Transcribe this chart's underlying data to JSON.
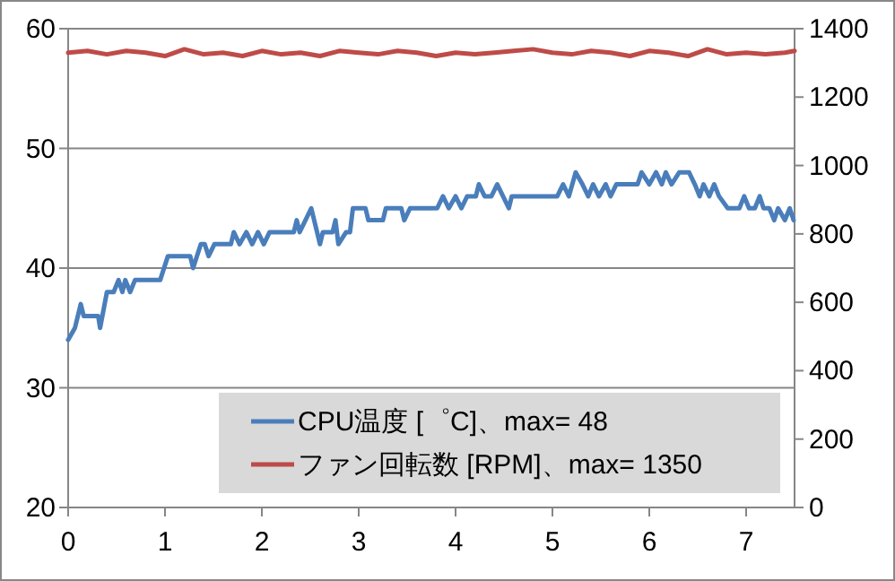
{
  "chart_data": {
    "type": "line",
    "xlim": [
      0,
      7.5
    ],
    "xticks": [
      0,
      1,
      2,
      3,
      4,
      5,
      6,
      7
    ],
    "ylim": [
      20,
      60
    ],
    "yticks": [
      20,
      30,
      40,
      50,
      60
    ],
    "y2lim": [
      0,
      1400
    ],
    "y2ticks": [
      0,
      200,
      400,
      600,
      800,
      1000,
      1200,
      1400
    ],
    "grid": "y",
    "legend": "bottom right",
    "series": [
      {
        "name": "CPU温度 [゜C]、max= 48",
        "color": "#4a7ebb",
        "x": [
          0,
          0.07,
          0.13,
          0.16,
          0.31,
          0.33,
          0.4,
          0.47,
          0.52,
          0.56,
          0.59,
          0.64,
          0.69,
          0.95,
          1.03,
          1.26,
          1.29,
          1.37,
          1.41,
          1.45,
          1.51,
          1.68,
          1.71,
          1.77,
          1.84,
          1.9,
          1.96,
          2.02,
          2.08,
          2.14,
          2.33,
          2.36,
          2.39,
          2.45,
          2.51,
          2.57,
          2.6,
          2.63,
          2.73,
          2.76,
          2.79,
          2.87,
          2.91,
          2.94,
          3.07,
          3.1,
          3.25,
          3.28,
          3.44,
          3.47,
          3.53,
          3.81,
          3.87,
          3.93,
          4.0,
          4.06,
          4.12,
          4.21,
          4.24,
          4.3,
          4.37,
          4.43,
          4.49,
          4.55,
          4.58,
          5.05,
          5.11,
          5.17,
          5.24,
          5.31,
          5.37,
          5.42,
          5.48,
          5.55,
          5.6,
          5.66,
          5.88,
          5.92,
          6.0,
          6.07,
          6.13,
          6.17,
          6.23,
          6.31,
          6.41,
          6.47,
          6.52,
          6.56,
          6.62,
          6.67,
          6.72,
          6.81,
          6.93,
          6.98,
          7.03,
          7.09,
          7.14,
          7.18,
          7.24,
          7.29,
          7.33,
          7.4,
          7.45,
          7.49
        ],
        "values": [
          34,
          35,
          37,
          36,
          36,
          35,
          38,
          38,
          39,
          38,
          39,
          38,
          39,
          39,
          41,
          41,
          40,
          42,
          42,
          41,
          42,
          42,
          43,
          42,
          43,
          42,
          43,
          42,
          43,
          43,
          43,
          44,
          43,
          44,
          45,
          43,
          42,
          43,
          43,
          44,
          42,
          43,
          43,
          45,
          45,
          44,
          44,
          45,
          45,
          44,
          45,
          45,
          46,
          45,
          46,
          45,
          46,
          46,
          47,
          46,
          46,
          47,
          46,
          45,
          46,
          46,
          47,
          46,
          48,
          47,
          46,
          47,
          46,
          47,
          46,
          47,
          47,
          48,
          47,
          48,
          47,
          48,
          47,
          48,
          48,
          47,
          46,
          47,
          46,
          47,
          46,
          45,
          45,
          46,
          45,
          45,
          46,
          45,
          45,
          44,
          45,
          44,
          45,
          44
        ]
      },
      {
        "name": "ファン回転数 [RPM]、max= 1350",
        "color": "#be4b48",
        "axis": "y2",
        "x": [
          0,
          0.2,
          0.4,
          0.6,
          0.8,
          1.0,
          1.2,
          1.4,
          1.6,
          1.8,
          2.0,
          2.2,
          2.4,
          2.6,
          2.8,
          3.0,
          3.2,
          3.4,
          3.6,
          3.8,
          4.0,
          4.2,
          4.4,
          4.6,
          4.8,
          5.0,
          5.2,
          5.4,
          5.6,
          5.8,
          6.0,
          6.2,
          6.4,
          6.6,
          6.8,
          7.0,
          7.2,
          7.4,
          7.5
        ],
        "values": [
          1330,
          1335,
          1325,
          1335,
          1330,
          1320,
          1340,
          1325,
          1330,
          1320,
          1335,
          1325,
          1330,
          1320,
          1335,
          1330,
          1325,
          1335,
          1330,
          1320,
          1330,
          1325,
          1330,
          1335,
          1340,
          1330,
          1325,
          1335,
          1330,
          1320,
          1335,
          1330,
          1320,
          1340,
          1325,
          1330,
          1325,
          1330,
          1335
        ]
      }
    ]
  }
}
